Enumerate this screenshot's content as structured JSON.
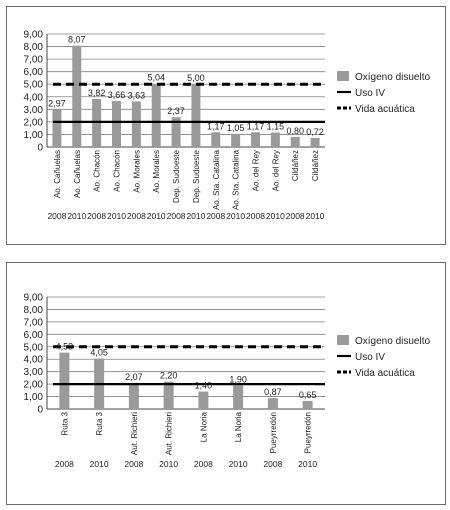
{
  "colors": {
    "bar": "#9a9a9a",
    "grid": "#808080",
    "line": "#000000",
    "panel_border": "#6b6b6b"
  },
  "chart_data": [
    {
      "type": "bar",
      "y_tick_labels": [
        "0",
        "1,00",
        "2,00",
        "3,00",
        "4,00",
        "5,00",
        "6,00",
        "7,00",
        "8,00",
        "9,00"
      ],
      "ylim": [
        0,
        9
      ],
      "grid": true,
      "legend_placement": "right",
      "categories": [
        "Ao. Cañuelas",
        "Ao. Cañuelas",
        "Ao. Chacón",
        "Ao. Chacón",
        "Ao. Morales",
        "Ao. Morales",
        "Dep. Sudoeste",
        "Dep. Sudoeste",
        "Ao. Sta. Catalina",
        "Ao. Sta. Catalina",
        "Ao. del Rey",
        "Ao. del Rey",
        "Cildáñez",
        "Cildáñez"
      ],
      "years": [
        "2008",
        "2010",
        "2008",
        "2010",
        "2008",
        "2010",
        "2008",
        "2010",
        "2008",
        "2010",
        "2008",
        "2010",
        "2008",
        "2010"
      ],
      "series": [
        {
          "name": "Oxígeno disuelto",
          "kind": "bar",
          "values": [
            2.97,
            8.07,
            3.82,
            3.66,
            3.63,
            5.04,
            2.37,
            5.0,
            1.17,
            1.05,
            1.17,
            1.15,
            0.8,
            0.72
          ],
          "labels": [
            "2,97",
            "8,07",
            "3,82",
            "3,66",
            "3,63",
            "5,04",
            "2,37",
            "5,00",
            "1,17",
            "1,05",
            "1,17",
            "1,15",
            "0,80",
            "0,72"
          ]
        },
        {
          "name": "Uso IV",
          "kind": "solid-line",
          "value": 2
        },
        {
          "name": "Vida acuática",
          "kind": "dashed-line",
          "value": 5
        }
      ]
    },
    {
      "type": "bar",
      "y_tick_labels": [
        "0",
        "1,00",
        "2,00",
        "3,00",
        "4,00",
        "5,00",
        "6,00",
        "7,00",
        "8,00",
        "9,00"
      ],
      "ylim": [
        0,
        9
      ],
      "grid": true,
      "legend_placement": "right",
      "categories": [
        "Ruta 3",
        "Ruta 3",
        "Aut. Richieri",
        "Aut. Richieri",
        "La Noria",
        "La Noria",
        "Pueyrredón",
        "Pueyrredón"
      ],
      "years": [
        "2008",
        "2010",
        "2008",
        "2010",
        "2008",
        "2010",
        "2008",
        "2010"
      ],
      "series": [
        {
          "name": "Oxígeno disuelto",
          "kind": "bar",
          "values": [
            4.53,
            4.05,
            2.07,
            2.2,
            1.4,
            1.9,
            0.87,
            0.65
          ],
          "labels": [
            "4,53",
            "4,05",
            "2,07",
            "2,20",
            "1,40",
            "1,90",
            "0,87",
            "0,65"
          ]
        },
        {
          "name": "Uso IV",
          "kind": "solid-line",
          "value": 2
        },
        {
          "name": "Vida acuática",
          "kind": "dashed-line",
          "value": 5
        }
      ]
    }
  ]
}
